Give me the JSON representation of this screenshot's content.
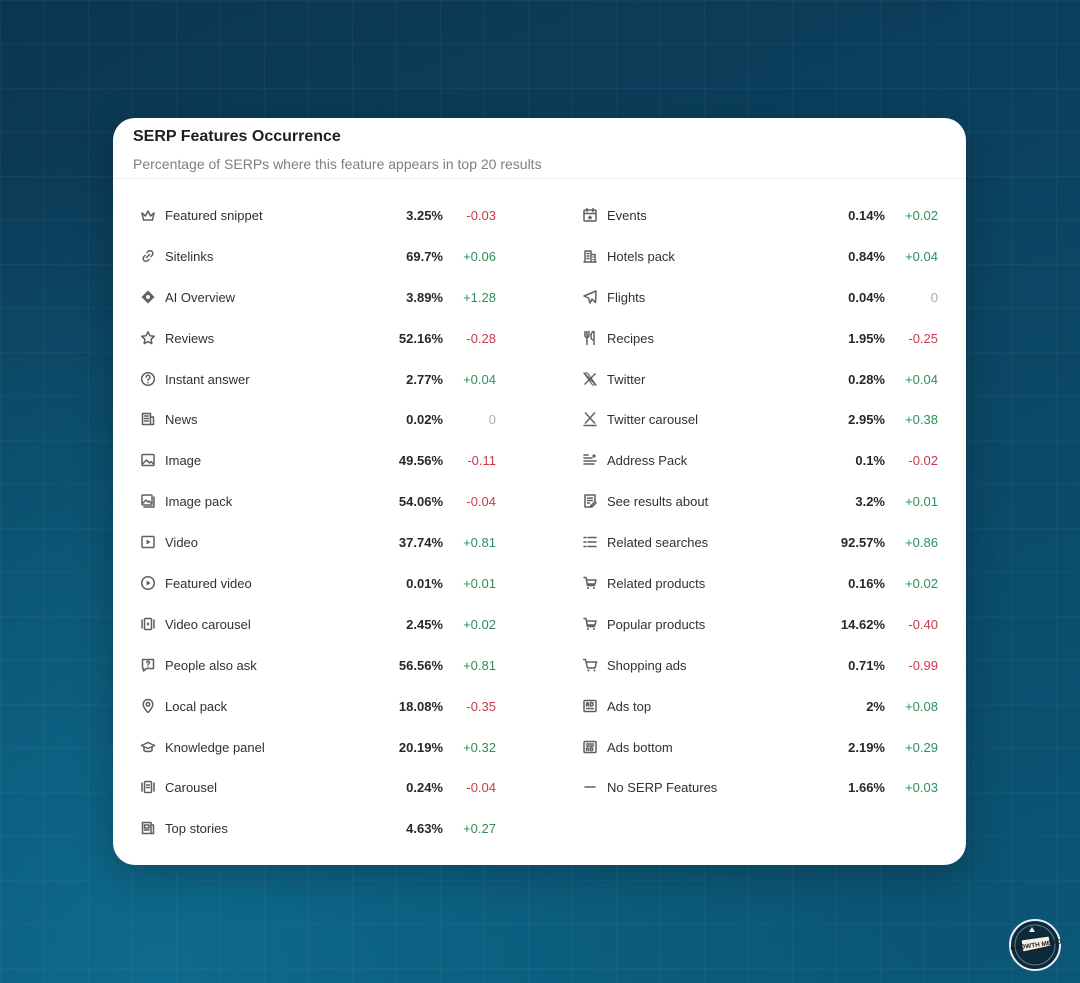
{
  "card": {
    "title": "SERP Features Occurrence",
    "subtitle": "Percentage of SERPs where this feature appears in top 20 results"
  },
  "colors": {
    "positive": "#2f8f5b",
    "negative": "#c83b4d",
    "neutral": "#a9abb0"
  },
  "features_left": [
    {
      "icon": "crown-icon",
      "name": "Featured snippet",
      "percent": "3.25%",
      "change": "-0.03",
      "trend": "neg"
    },
    {
      "icon": "link-icon",
      "name": "Sitelinks",
      "percent": "69.7%",
      "change": "+0.06",
      "trend": "pos"
    },
    {
      "icon": "sparkle-icon",
      "name": "AI Overview",
      "percent": "3.89%",
      "change": "+1.28",
      "trend": "pos"
    },
    {
      "icon": "star-icon",
      "name": "Reviews",
      "percent": "52.16%",
      "change": "-0.28",
      "trend": "neg"
    },
    {
      "icon": "question-icon",
      "name": "Instant answer",
      "percent": "2.77%",
      "change": "+0.04",
      "trend": "pos"
    },
    {
      "icon": "newspaper-icon",
      "name": "News",
      "percent": "0.02%",
      "change": "0",
      "trend": "zero"
    },
    {
      "icon": "image-icon",
      "name": "Image",
      "percent": "49.56%",
      "change": "-0.11",
      "trend": "neg"
    },
    {
      "icon": "image-pack-icon",
      "name": "Image pack",
      "percent": "54.06%",
      "change": "-0.04",
      "trend": "neg"
    },
    {
      "icon": "video-icon",
      "name": "Video",
      "percent": "37.74%",
      "change": "+0.81",
      "trend": "pos"
    },
    {
      "icon": "play-circle-icon",
      "name": "Featured video",
      "percent": "0.01%",
      "change": "+0.01",
      "trend": "pos"
    },
    {
      "icon": "video-carousel-icon",
      "name": "Video carousel",
      "percent": "2.45%",
      "change": "+0.02",
      "trend": "pos"
    },
    {
      "icon": "question-bubble-icon",
      "name": "People also ask",
      "percent": "56.56%",
      "change": "+0.81",
      "trend": "pos"
    },
    {
      "icon": "map-pin-icon",
      "name": "Local pack",
      "percent": "18.08%",
      "change": "-0.35",
      "trend": "neg"
    },
    {
      "icon": "graduation-cap-icon",
      "name": "Knowledge panel",
      "percent": "20.19%",
      "change": "+0.32",
      "trend": "pos"
    },
    {
      "icon": "carousel-icon",
      "name": "Carousel",
      "percent": "0.24%",
      "change": "-0.04",
      "trend": "neg"
    },
    {
      "icon": "top-stories-icon",
      "name": "Top stories",
      "percent": "4.63%",
      "change": "+0.27",
      "trend": "pos"
    }
  ],
  "features_right": [
    {
      "icon": "calendar-icon",
      "name": "Events",
      "percent": "0.14%",
      "change": "+0.02",
      "trend": "pos"
    },
    {
      "icon": "hotel-icon",
      "name": "Hotels pack",
      "percent": "0.84%",
      "change": "+0.04",
      "trend": "pos"
    },
    {
      "icon": "plane-icon",
      "name": "Flights",
      "percent": "0.04%",
      "change": "0",
      "trend": "zero"
    },
    {
      "icon": "utensils-icon",
      "name": "Recipes",
      "percent": "1.95%",
      "change": "-0.25",
      "trend": "neg"
    },
    {
      "icon": "x-logo-icon",
      "name": "Twitter",
      "percent": "0.28%",
      "change": "+0.04",
      "trend": "pos"
    },
    {
      "icon": "x-carousel-icon",
      "name": "Twitter carousel",
      "percent": "2.95%",
      "change": "+0.38",
      "trend": "pos"
    },
    {
      "icon": "address-icon",
      "name": "Address Pack",
      "percent": "0.1%",
      "change": "-0.02",
      "trend": "neg"
    },
    {
      "icon": "document-edit-icon",
      "name": "See results about",
      "percent": "3.2%",
      "change": "+0.01",
      "trend": "pos"
    },
    {
      "icon": "list-icon",
      "name": "Related searches",
      "percent": "92.57%",
      "change": "+0.86",
      "trend": "pos"
    },
    {
      "icon": "cart-icon",
      "name": "Related products",
      "percent": "0.16%",
      "change": "+0.02",
      "trend": "pos"
    },
    {
      "icon": "cart-icon",
      "name": "Popular products",
      "percent": "14.62%",
      "change": "-0.40",
      "trend": "neg"
    },
    {
      "icon": "shopping-cart-icon",
      "name": "Shopping ads",
      "percent": "0.71%",
      "change": "-0.99",
      "trend": "neg"
    },
    {
      "icon": "ad-top-icon",
      "name": "Ads top",
      "percent": "2%",
      "change": "+0.08",
      "trend": "pos"
    },
    {
      "icon": "ad-bottom-icon",
      "name": "Ads bottom",
      "percent": "2.19%",
      "change": "+0.29",
      "trend": "pos"
    },
    {
      "icon": "minus-icon",
      "name": "No SERP Features",
      "percent": "1.66%",
      "change": "+0.03",
      "trend": "pos"
    }
  ],
  "badge": {
    "icon": "growth-memo-logo",
    "text": "GROWTH MEMO"
  }
}
